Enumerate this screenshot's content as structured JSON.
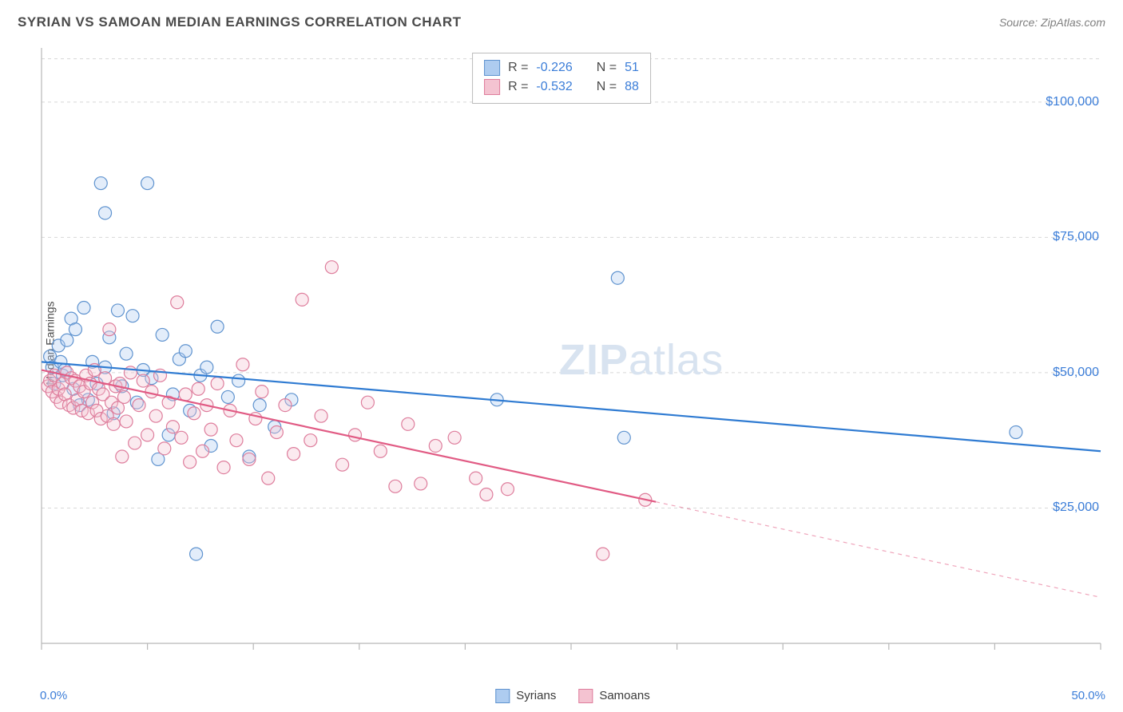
{
  "header": {
    "title": "SYRIAN VS SAMOAN MEDIAN EARNINGS CORRELATION CHART",
    "source": "Source: ZipAtlas.com"
  },
  "watermark": {
    "zip": "ZIP",
    "atlas": "atlas"
  },
  "ylabel": "Median Earnings",
  "chart": {
    "type": "scatter",
    "background_color": "#ffffff",
    "grid_color": "#d8d8d8",
    "axis_color": "#b8b8b8",
    "tick_label_color": "#3b7dd8",
    "marker_radius": 8,
    "marker_fill_opacity": 0.35,
    "marker_stroke_width": 1.2,
    "trend_line_width": 2.2,
    "xlim": [
      0,
      50
    ],
    "xtick_positions": [
      0,
      5,
      10,
      15,
      20,
      25,
      30,
      35,
      40,
      45,
      50
    ],
    "xtick_labels": {
      "0": "0.0%",
      "50": "50.0%"
    },
    "ylim": [
      0,
      110000
    ],
    "ytick_values": [
      25000,
      50000,
      75000,
      100000
    ],
    "ytick_labels": [
      "$25,000",
      "$50,000",
      "$75,000",
      "$100,000"
    ],
    "series": [
      {
        "key": "syrians",
        "label": "Syrians",
        "fill": "#aeccf0",
        "stroke": "#5f93cf",
        "line_color": "#2f7bd2",
        "r_label": "R =",
        "r_value": "-0.226",
        "n_label": "N =",
        "n_value": "51",
        "trend": {
          "x1": 0,
          "y1": 52000,
          "x2": 50,
          "y2": 35500,
          "dash_from_x": null
        },
        "points": [
          [
            0.4,
            53000
          ],
          [
            0.5,
            51000
          ],
          [
            0.6,
            48000
          ],
          [
            0.8,
            55000
          ],
          [
            0.9,
            52000
          ],
          [
            1.0,
            49500
          ],
          [
            1.1,
            50500
          ],
          [
            1.2,
            56000
          ],
          [
            1.4,
            60000
          ],
          [
            1.5,
            47000
          ],
          [
            1.6,
            58000
          ],
          [
            1.8,
            44000
          ],
          [
            2.0,
            62000
          ],
          [
            2.2,
            45000
          ],
          [
            2.4,
            52000
          ],
          [
            2.6,
            48000
          ],
          [
            2.8,
            85000
          ],
          [
            3.0,
            79500
          ],
          [
            3.0,
            51000
          ],
          [
            3.2,
            56500
          ],
          [
            3.4,
            42500
          ],
          [
            3.6,
            61500
          ],
          [
            3.8,
            47500
          ],
          [
            4.0,
            53500
          ],
          [
            4.3,
            60500
          ],
          [
            4.5,
            44500
          ],
          [
            4.8,
            50500
          ],
          [
            5.0,
            85000
          ],
          [
            5.2,
            49000
          ],
          [
            5.5,
            34000
          ],
          [
            5.7,
            57000
          ],
          [
            6.0,
            38500
          ],
          [
            6.2,
            46000
          ],
          [
            6.5,
            52500
          ],
          [
            6.8,
            54000
          ],
          [
            7.0,
            43000
          ],
          [
            7.3,
            16500
          ],
          [
            7.5,
            49500
          ],
          [
            7.8,
            51000
          ],
          [
            8.0,
            36500
          ],
          [
            8.3,
            58500
          ],
          [
            8.8,
            45500
          ],
          [
            9.3,
            48500
          ],
          [
            9.8,
            34500
          ],
          [
            10.3,
            44000
          ],
          [
            11.0,
            40000
          ],
          [
            11.8,
            45000
          ],
          [
            21.5,
            45000
          ],
          [
            27.2,
            67500
          ],
          [
            27.5,
            38000
          ],
          [
            46.0,
            39000
          ]
        ]
      },
      {
        "key": "samoans",
        "label": "Samoans",
        "fill": "#f4c3d1",
        "stroke": "#de7d9c",
        "line_color": "#e15b84",
        "r_label": "R =",
        "r_value": "-0.532",
        "n_label": "N =",
        "n_value": "88",
        "trend": {
          "x1": 0,
          "y1": 50500,
          "x2": 50,
          "y2": 8500,
          "dash_from_x": 29
        },
        "points": [
          [
            0.3,
            47500
          ],
          [
            0.4,
            48500
          ],
          [
            0.5,
            46500
          ],
          [
            0.6,
            49500
          ],
          [
            0.7,
            45500
          ],
          [
            0.8,
            47000
          ],
          [
            0.9,
            44500
          ],
          [
            1.0,
            48000
          ],
          [
            1.1,
            46000
          ],
          [
            1.2,
            50000
          ],
          [
            1.3,
            44000
          ],
          [
            1.4,
            49000
          ],
          [
            1.5,
            43500
          ],
          [
            1.6,
            48500
          ],
          [
            1.7,
            45000
          ],
          [
            1.8,
            47500
          ],
          [
            1.9,
            43000
          ],
          [
            2.0,
            46500
          ],
          [
            2.1,
            49500
          ],
          [
            2.2,
            42500
          ],
          [
            2.3,
            48000
          ],
          [
            2.4,
            44500
          ],
          [
            2.5,
            50500
          ],
          [
            2.6,
            43000
          ],
          [
            2.7,
            47000
          ],
          [
            2.8,
            41500
          ],
          [
            2.9,
            46000
          ],
          [
            3.0,
            49000
          ],
          [
            3.1,
            42000
          ],
          [
            3.2,
            58000
          ],
          [
            3.3,
            44500
          ],
          [
            3.4,
            40500
          ],
          [
            3.5,
            47500
          ],
          [
            3.6,
            43500
          ],
          [
            3.7,
            48000
          ],
          [
            3.8,
            34500
          ],
          [
            3.9,
            45500
          ],
          [
            4.0,
            41000
          ],
          [
            4.2,
            50000
          ],
          [
            4.4,
            37000
          ],
          [
            4.6,
            44000
          ],
          [
            4.8,
            48500
          ],
          [
            5.0,
            38500
          ],
          [
            5.2,
            46500
          ],
          [
            5.4,
            42000
          ],
          [
            5.6,
            49500
          ],
          [
            5.8,
            36000
          ],
          [
            6.0,
            44500
          ],
          [
            6.2,
            40000
          ],
          [
            6.4,
            63000
          ],
          [
            6.6,
            38000
          ],
          [
            6.8,
            46000
          ],
          [
            7.0,
            33500
          ],
          [
            7.2,
            42500
          ],
          [
            7.4,
            47000
          ],
          [
            7.6,
            35500
          ],
          [
            7.8,
            44000
          ],
          [
            8.0,
            39500
          ],
          [
            8.3,
            48000
          ],
          [
            8.6,
            32500
          ],
          [
            8.9,
            43000
          ],
          [
            9.2,
            37500
          ],
          [
            9.5,
            51500
          ],
          [
            9.8,
            34000
          ],
          [
            10.1,
            41500
          ],
          [
            10.4,
            46500
          ],
          [
            10.7,
            30500
          ],
          [
            11.1,
            39000
          ],
          [
            11.5,
            44000
          ],
          [
            11.9,
            35000
          ],
          [
            12.3,
            63500
          ],
          [
            12.7,
            37500
          ],
          [
            13.2,
            42000
          ],
          [
            13.7,
            69500
          ],
          [
            14.2,
            33000
          ],
          [
            14.8,
            38500
          ],
          [
            15.4,
            44500
          ],
          [
            16.0,
            35500
          ],
          [
            16.7,
            29000
          ],
          [
            17.3,
            40500
          ],
          [
            17.9,
            29500
          ],
          [
            18.6,
            36500
          ],
          [
            19.5,
            38000
          ],
          [
            20.5,
            30500
          ],
          [
            21.0,
            27500
          ],
          [
            22.0,
            28500
          ],
          [
            26.5,
            16500
          ],
          [
            28.5,
            26500
          ]
        ]
      }
    ]
  },
  "bottom_legend": [
    {
      "label": "Syrians",
      "fill": "#aeccf0",
      "stroke": "#5f93cf"
    },
    {
      "label": "Samoans",
      "fill": "#f4c3d1",
      "stroke": "#de7d9c"
    }
  ]
}
